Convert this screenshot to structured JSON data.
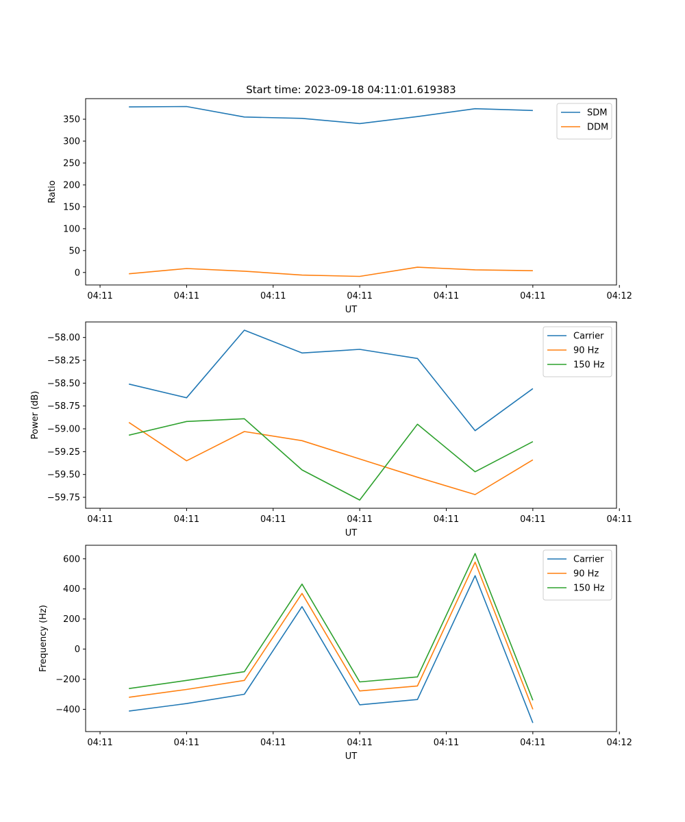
{
  "figure": {
    "suptitle": "Start time: 2023-09-18 04:11:01.619383"
  },
  "chart_data": [
    {
      "type": "line",
      "title": "Start time: 2023-09-18 04:11:01.619383",
      "xlabel": "UT",
      "ylabel": "Ratio",
      "x": [
        1.0,
        2.0,
        3.0,
        4.0,
        5.0,
        6.0,
        7.0,
        8.0
      ],
      "xlim": [
        0.25,
        9.45
      ],
      "xticks": [
        0.5,
        2.0,
        3.5,
        5.0,
        6.5,
        8.0,
        9.5
      ],
      "xtick_labels": [
        "04:11",
        "04:11",
        "04:11",
        "04:11",
        "04:11",
        "04:11",
        "04:12"
      ],
      "ylim": [
        -28.5,
        397
      ],
      "yticks": [
        0,
        50,
        100,
        150,
        200,
        250,
        300,
        350
      ],
      "ytick_labels": [
        "0",
        "50",
        "100",
        "150",
        "200",
        "250",
        "300",
        "350"
      ],
      "legend_position": "top-right",
      "series": [
        {
          "name": "SDM",
          "color": "#1f77b4",
          "values": [
            378,
            379,
            355,
            352,
            340,
            356,
            374,
            370
          ]
        },
        {
          "name": "DDM",
          "color": "#ff7f0e",
          "values": [
            -3,
            9,
            3,
            -6,
            -9,
            12,
            6,
            4
          ]
        }
      ]
    },
    {
      "type": "line",
      "title": "",
      "xlabel": "UT",
      "ylabel": "Power (dB)",
      "x": [
        1.0,
        2.0,
        3.0,
        4.0,
        5.0,
        6.0,
        7.0,
        8.0
      ],
      "xlim": [
        0.25,
        9.45
      ],
      "xticks": [
        0.5,
        2.0,
        3.5,
        5.0,
        6.5,
        8.0,
        9.5
      ],
      "xtick_labels": [
        "04:11",
        "04:11",
        "04:11",
        "04:11",
        "04:11",
        "04:11",
        "04:11"
      ],
      "ylim": [
        -59.87,
        -57.83
      ],
      "yticks": [
        -59.75,
        -59.5,
        -59.25,
        -59.0,
        -58.75,
        -58.5,
        -58.25,
        -58.0
      ],
      "ytick_labels": [
        "−59.75",
        "−59.50",
        "−59.25",
        "−59.00",
        "−58.75",
        "−58.50",
        "−58.25",
        "−58.00"
      ],
      "legend_position": "top-right",
      "series": [
        {
          "name": "Carrier",
          "color": "#1f77b4",
          "values": [
            -58.51,
            -58.66,
            -57.92,
            -58.17,
            -58.13,
            -58.23,
            -59.02,
            -58.56
          ]
        },
        {
          "name": "90 Hz",
          "color": "#ff7f0e",
          "values": [
            -58.93,
            -59.35,
            -59.03,
            -59.13,
            -59.33,
            -59.53,
            -59.72,
            -59.34
          ]
        },
        {
          "name": "150 Hz",
          "color": "#2ca02c",
          "values": [
            -59.07,
            -58.92,
            -58.89,
            -59.45,
            -59.78,
            -58.95,
            -59.47,
            -59.14
          ]
        }
      ]
    },
    {
      "type": "line",
      "title": "",
      "xlabel": "UT",
      "ylabel": "Frequency (Hz)",
      "x": [
        1.0,
        2.0,
        3.0,
        4.0,
        5.0,
        6.0,
        7.0,
        8.0
      ],
      "xlim": [
        0.25,
        9.45
      ],
      "xticks": [
        0.5,
        2.0,
        3.5,
        5.0,
        6.5,
        8.0,
        9.5
      ],
      "xtick_labels": [
        "04:11",
        "04:11",
        "04:11",
        "04:11",
        "04:11",
        "04:11",
        "04:12"
      ],
      "ylim": [
        -548,
        690
      ],
      "yticks": [
        -400,
        -200,
        0,
        200,
        400,
        600
      ],
      "ytick_labels": [
        "−400",
        "−200",
        "0",
        "200",
        "400",
        "600"
      ],
      "legend_position": "top-right",
      "series": [
        {
          "name": "Carrier",
          "color": "#1f77b4",
          "values": [
            -412,
            -362,
            -300,
            282,
            -370,
            -335,
            488,
            -490
          ]
        },
        {
          "name": "90 Hz",
          "color": "#ff7f0e",
          "values": [
            -320,
            -268,
            -208,
            370,
            -278,
            -245,
            578,
            -400
          ]
        },
        {
          "name": "150 Hz",
          "color": "#2ca02c",
          "values": [
            -262,
            -208,
            -150,
            432,
            -218,
            -185,
            635,
            -340
          ]
        }
      ]
    }
  ]
}
